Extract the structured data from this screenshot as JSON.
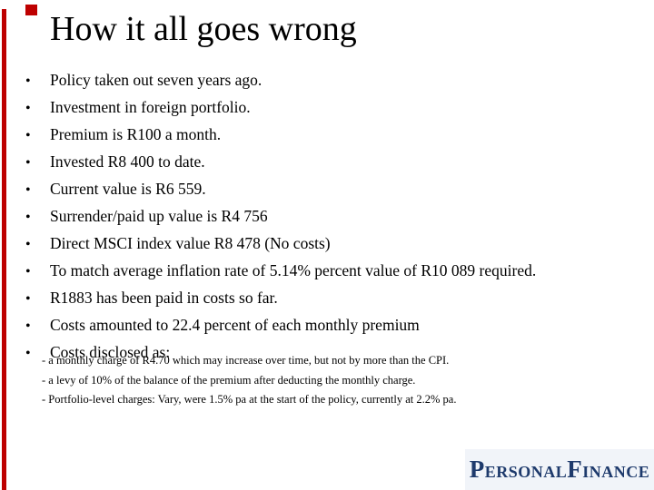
{
  "slide": {
    "title": "How it all goes wrong",
    "bullet_char": "•",
    "bullets": [
      "Policy taken out seven years ago.",
      "Investment in foreign portfolio.",
      "Premium is R100 a month.",
      "Invested R8 400 to date.",
      "Current value is R6 559.",
      "Surrender/paid up value is R4 756",
      "Direct MSCI index value R8 478 (No costs)",
      "To match average inflation rate of 5.14% percent value of R10 089 required.",
      "R1883 has been paid in costs so far.",
      "Costs amounted to 22.4 percent of each monthly premium",
      "Costs disclosed as:"
    ],
    "sub_bullets": [
      "- a monthly charge of R4.70 which may increase over time, but not by more than the CPI.",
      "- a levy of 10% of the balance of the premium after deducting the monthly charge.",
      "-  Portfolio-level charges: Vary, were 1.5% pa at the start of the policy, currently at 2.2% pa."
    ],
    "logo": {
      "word1_initial": "P",
      "word1_rest": "ERSONAL",
      "word2_initial": "F",
      "word2_rest": "INANCE"
    },
    "colors": {
      "accent_red": "#be0000",
      "logo_navy": "#1e3a6c",
      "logo_panel_bg": "#f1f4f9",
      "background": "#ffffff",
      "text": "#000000"
    }
  }
}
